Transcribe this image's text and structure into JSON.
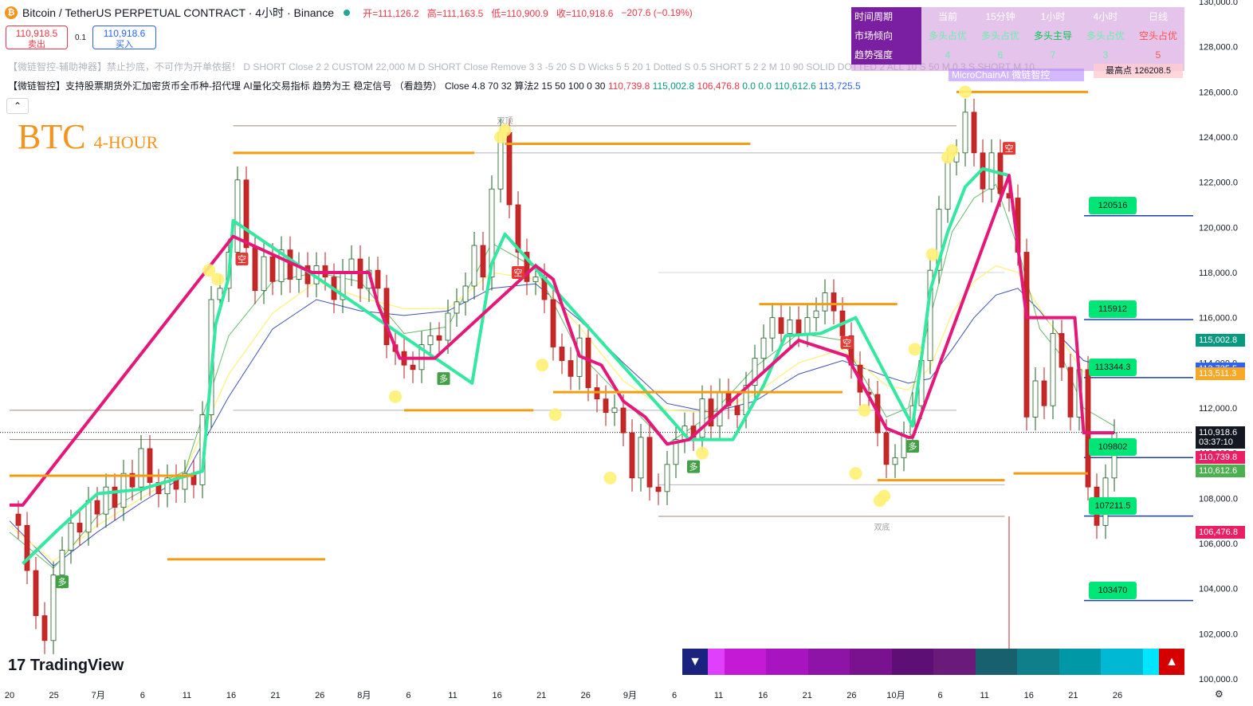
{
  "header": {
    "symbol": "Bitcoin / TetherUS PERPETUAL CONTRACT · 4小时 · Binance",
    "open": "开=111,126.2",
    "high": "高=111,163.5",
    "low": "低=110,900.9",
    "close": "收=110,918.6",
    "change": "−207.6 (−0.19%)"
  },
  "trade": {
    "sell_price": "110,918.5",
    "sell_label": "卖出",
    "spread": "0.1",
    "buy_price": "110,918.6",
    "buy_label": "买入"
  },
  "indicators": {
    "line1": "【微链智控-辅助神器】禁止抄底，不可作为开单依据！ D SHORT Close 2 2 CUSTOM 22,000 M D SHORT Close Remove 3 3 -5 20 S D Wicks 5 5 20 1 Dotted S 0.5 SHORT 5 2 2 M 10 90 SOLID DOTTED 2 ALL 10 S 50 M 0.3 S SHORT M 10",
    "line2": "【微链智控】支持股票期货外汇加密货币全币种-招代理 AI量化交易指标 趋势为王 稳定信号 （看趋势） Close 4.8 70 32 算法2 15 50 100 0 30",
    "v1": "110,739.8",
    "v2": "115,002.8",
    "v3": "106,476.8",
    "v4": "0.0",
    "v5": "0.0",
    "v6": "110,612.6",
    "v7": "113,725.5"
  },
  "collapse_icon": "chevron-up-icon",
  "title": {
    "main": "BTC",
    "sub": "4-HOUR"
  },
  "panel": {
    "headers": [
      "时间周期",
      "当前",
      "15分钟",
      "1小时",
      "4小时",
      "日线"
    ],
    "trend": [
      "市场倾向",
      "多头占优",
      "多头占优",
      "多头主导",
      "多头占优",
      "空头占优"
    ],
    "strength": [
      "趋势强度",
      "4",
      "6",
      "7",
      "3",
      "5"
    ],
    "microchain": "MicroChainAI 微链智控",
    "highest": "最高点 126208.5"
  },
  "logo": "TradingView",
  "chart_data": {
    "type": "candlestick",
    "symbol": "BTCUSDT.P",
    "timeframe": "4H",
    "ylim": [
      100000,
      130000
    ],
    "y_ticks": [
      "100,000.0",
      "102,000.0",
      "104,000.0",
      "106,000.0",
      "108,000.0",
      "110,000.0",
      "112,000.0",
      "114,000.0",
      "116,000.0",
      "118,000.0",
      "120,000.0",
      "122,000.0",
      "124,000.0",
      "126,000.0",
      "128,000.0",
      "130,000.0"
    ],
    "x_ticks": [
      "20",
      "25",
      "7月",
      "6",
      "11",
      "16",
      "21",
      "26",
      "8月",
      "6",
      "11",
      "16",
      "21",
      "26",
      "9月",
      "6",
      "11",
      "16",
      "21",
      "26",
      "10月",
      "6",
      "11",
      "16",
      "21",
      "26"
    ],
    "close_series": [
      [
        0,
        107300
      ],
      [
        0.4,
        106800
      ],
      [
        0.8,
        104800
      ],
      [
        1.2,
        102800
      ],
      [
        1.6,
        101700
      ],
      [
        2,
        104600
      ],
      [
        2.4,
        105700
      ],
      [
        2.8,
        106900
      ],
      [
        3.2,
        106500
      ],
      [
        3.6,
        107900
      ],
      [
        4,
        107300
      ],
      [
        4.4,
        108500
      ],
      [
        4.8,
        107600
      ],
      [
        5.2,
        109100
      ],
      [
        5.6,
        108500
      ],
      [
        6,
        110200
      ],
      [
        6.4,
        108700
      ],
      [
        6.8,
        108200
      ],
      [
        7.2,
        108900
      ],
      [
        7.6,
        108400
      ],
      [
        8,
        109100
      ],
      [
        8.4,
        108600
      ],
      [
        8.8,
        111700
      ],
      [
        9.2,
        116800
      ],
      [
        9.6,
        117300
      ],
      [
        10,
        118900
      ],
      [
        10.4,
        122100
      ],
      [
        10.8,
        119100
      ],
      [
        11.2,
        117200
      ],
      [
        11.6,
        118700
      ],
      [
        12,
        117600
      ],
      [
        12.4,
        119000
      ],
      [
        12.8,
        117700
      ],
      [
        13.2,
        118300
      ],
      [
        13.6,
        117500
      ],
      [
        14,
        118300
      ],
      [
        14.4,
        117800
      ],
      [
        14.8,
        116800
      ],
      [
        15.2,
        118000
      ],
      [
        15.6,
        118600
      ],
      [
        16,
        117300
      ],
      [
        16.4,
        118100
      ],
      [
        16.8,
        117300
      ],
      [
        17.2,
        114800
      ],
      [
        17.6,
        114500
      ],
      [
        18,
        113900
      ],
      [
        18.4,
        113700
      ],
      [
        18.8,
        114800
      ],
      [
        19.2,
        115200
      ],
      [
        19.6,
        115000
      ],
      [
        20,
        116200
      ],
      [
        20.4,
        116700
      ],
      [
        20.8,
        117400
      ],
      [
        21.2,
        119200
      ],
      [
        21.6,
        117800
      ],
      [
        22,
        121700
      ],
      [
        22.4,
        124200
      ],
      [
        22.8,
        121000
      ],
      [
        23.2,
        118900
      ],
      [
        23.6,
        117600
      ],
      [
        24,
        117800
      ],
      [
        24.4,
        116800
      ],
      [
        24.8,
        114700
      ],
      [
        25.2,
        114100
      ],
      [
        25.6,
        113400
      ],
      [
        26,
        115100
      ],
      [
        26.4,
        112900
      ],
      [
        26.8,
        112400
      ],
      [
        27.2,
        111800
      ],
      [
        27.6,
        112000
      ],
      [
        28,
        110900
      ],
      [
        28.4,
        108900
      ],
      [
        28.8,
        110700
      ],
      [
        29.2,
        108500
      ],
      [
        29.6,
        108300
      ],
      [
        30,
        109500
      ],
      [
        30.4,
        110600
      ],
      [
        30.8,
        111200
      ],
      [
        31.2,
        110700
      ],
      [
        31.6,
        112400
      ],
      [
        32,
        111200
      ],
      [
        32.4,
        112700
      ],
      [
        32.8,
        112100
      ],
      [
        33.2,
        111700
      ],
      [
        33.6,
        113000
      ],
      [
        34,
        114200
      ],
      [
        34.4,
        115100
      ],
      [
        34.8,
        116000
      ],
      [
        35.2,
        115300
      ],
      [
        35.6,
        115900
      ],
      [
        36,
        115300
      ],
      [
        36.4,
        116000
      ],
      [
        36.8,
        116300
      ],
      [
        37.2,
        117100
      ],
      [
        37.6,
        116300
      ],
      [
        38,
        115200
      ],
      [
        38.4,
        113900
      ],
      [
        38.8,
        112700
      ],
      [
        39.2,
        112600
      ],
      [
        39.6,
        110900
      ],
      [
        40,
        109500
      ],
      [
        40.4,
        109800
      ],
      [
        40.8,
        110800
      ],
      [
        41.2,
        112100
      ],
      [
        41.6,
        114100
      ],
      [
        42,
        118100
      ],
      [
        42.4,
        120800
      ],
      [
        42.8,
        122900
      ],
      [
        43.2,
        123300
      ],
      [
        43.6,
        125100
      ],
      [
        44,
        123300
      ],
      [
        44.4,
        121700
      ],
      [
        44.8,
        123300
      ],
      [
        45.2,
        121500
      ],
      [
        45.6,
        121300
      ],
      [
        46,
        118900
      ],
      [
        46.4,
        111600
      ],
      [
        46.8,
        113200
      ],
      [
        47.2,
        112100
      ],
      [
        47.6,
        115300
      ],
      [
        48,
        113800
      ],
      [
        48.4,
        111600
      ],
      [
        48.8,
        113700
      ],
      [
        49.2,
        108500
      ],
      [
        49.6,
        106800
      ],
      [
        50,
        108900
      ],
      [
        50.4,
        110900
      ]
    ],
    "supertrend_bull": [
      [
        0.6,
        105100
      ],
      [
        2.2,
        106600
      ],
      [
        4,
        108200
      ],
      [
        6,
        108400
      ],
      [
        8.8,
        109200
      ],
      [
        9.4,
        115700
      ],
      [
        10,
        117800
      ],
      [
        10.2,
        120300
      ],
      [
        21.1,
        113100
      ],
      [
        22,
        118400
      ],
      [
        22.6,
        119700
      ],
      [
        31,
        110600
      ],
      [
        33,
        110600
      ],
      [
        34.4,
        113000
      ],
      [
        35.4,
        115200
      ],
      [
        37,
        115300
      ],
      [
        38.6,
        116000
      ],
      [
        41.2,
        111200
      ],
      [
        42,
        117200
      ],
      [
        42.8,
        119800
      ],
      [
        43.6,
        121800
      ],
      [
        44.4,
        122600
      ],
      [
        45.6,
        122300
      ]
    ],
    "supertrend_bear": [
      [
        0,
        107700
      ],
      [
        0.6,
        107700
      ],
      [
        10.2,
        119600
      ],
      [
        13.8,
        118000
      ],
      [
        16.4,
        118000
      ],
      [
        16.8,
        116600
      ],
      [
        17.8,
        114200
      ],
      [
        19.4,
        114200
      ],
      [
        24,
        118300
      ],
      [
        24.8,
        117700
      ],
      [
        26,
        114300
      ],
      [
        27,
        113900
      ],
      [
        28,
        112300
      ],
      [
        29,
        111600
      ],
      [
        30,
        110400
      ],
      [
        31,
        110600
      ],
      [
        36,
        115000
      ],
      [
        38.2,
        114300
      ],
      [
        40,
        111100
      ],
      [
        41,
        110700
      ],
      [
        41.2,
        110700
      ],
      [
        45.6,
        122300
      ],
      [
        46.4,
        116000
      ],
      [
        48.6,
        116000
      ],
      [
        49,
        110900
      ],
      [
        50.4,
        110900
      ]
    ],
    "ma_slow": [
      [
        0,
        107000
      ],
      [
        2,
        105000
      ],
      [
        4,
        106500
      ],
      [
        6,
        107800
      ],
      [
        8,
        109000
      ],
      [
        10,
        112500
      ],
      [
        12,
        115500
      ],
      [
        14,
        116800
      ],
      [
        16,
        116300
      ],
      [
        18,
        116100
      ],
      [
        20,
        116300
      ],
      [
        22,
        117300
      ],
      [
        24,
        117500
      ],
      [
        26,
        115900
      ],
      [
        28,
        114000
      ],
      [
        30,
        112200
      ],
      [
        32,
        111800
      ],
      [
        34,
        112300
      ],
      [
        36,
        113500
      ],
      [
        38,
        114100
      ],
      [
        40,
        113400
      ],
      [
        41,
        113100
      ],
      [
        42,
        113300
      ],
      [
        43,
        114600
      ],
      [
        44,
        116000
      ],
      [
        45,
        117000
      ],
      [
        46,
        117300
      ],
      [
        47,
        116300
      ],
      [
        48,
        115100
      ],
      [
        49,
        114100
      ],
      [
        50.4,
        113700
      ]
    ],
    "ma_mid": [
      [
        0,
        106800
      ],
      [
        2,
        105200
      ],
      [
        4,
        106800
      ],
      [
        6,
        108000
      ],
      [
        8,
        109200
      ],
      [
        10,
        113500
      ],
      [
        12,
        116200
      ],
      [
        14,
        117600
      ],
      [
        16,
        116900
      ],
      [
        18,
        116400
      ],
      [
        20,
        116400
      ],
      [
        22,
        118000
      ],
      [
        24,
        117700
      ],
      [
        26,
        115600
      ],
      [
        28,
        113200
      ],
      [
        30,
        111900
      ],
      [
        32,
        111800
      ],
      [
        34,
        112600
      ],
      [
        36,
        114000
      ],
      [
        38,
        114600
      ],
      [
        40,
        113000
      ],
      [
        41,
        112800
      ],
      [
        42,
        113800
      ],
      [
        43,
        116200
      ],
      [
        44,
        117600
      ],
      [
        45,
        118300
      ],
      [
        46,
        118000
      ],
      [
        47,
        116400
      ],
      [
        48,
        115000
      ],
      [
        49,
        113600
      ],
      [
        50.4,
        113500
      ]
    ],
    "ma_fast": [
      [
        0,
        106500
      ],
      [
        2,
        104900
      ],
      [
        4,
        107200
      ],
      [
        6,
        108300
      ],
      [
        8,
        109200
      ],
      [
        10,
        115200
      ],
      [
        12,
        117600
      ],
      [
        14,
        118000
      ],
      [
        16,
        117600
      ],
      [
        18,
        115300
      ],
      [
        20,
        115600
      ],
      [
        22,
        119300
      ],
      [
        24,
        118200
      ],
      [
        26,
        114400
      ],
      [
        28,
        112400
      ],
      [
        30,
        110400
      ],
      [
        32,
        111700
      ],
      [
        34,
        113800
      ],
      [
        36,
        115300
      ],
      [
        38,
        115000
      ],
      [
        40,
        111600
      ],
      [
        41,
        112000
      ],
      [
        42,
        116000
      ],
      [
        43,
        119800
      ],
      [
        44,
        121300
      ],
      [
        45,
        121900
      ],
      [
        46,
        119100
      ],
      [
        47,
        115500
      ],
      [
        48,
        114300
      ],
      [
        49,
        112000
      ],
      [
        50.4,
        111200
      ]
    ],
    "support_resistance": [
      {
        "x1": 10.2,
        "x2": 21.2,
        "y": 123300
      },
      {
        "x1": 22.6,
        "x2": 33.8,
        "y": 123700
      },
      {
        "x1": 7.2,
        "x2": 14.4,
        "y": 105300
      },
      {
        "x1": 0,
        "x2": 8.4,
        "y": 109000
      },
      {
        "x1": 18,
        "x2": 23.9,
        "y": 111900
      },
      {
        "x1": 24.8,
        "x2": 38,
        "y": 112700
      },
      {
        "x1": 34.2,
        "x2": 40.5,
        "y": 116600
      },
      {
        "x1": 39.6,
        "x2": 45.4,
        "y": 108800
      },
      {
        "x1": 43.2,
        "x2": 49.2,
        "y": 126000
      },
      {
        "x1": 45.8,
        "x2": 49.2,
        "y": 109100
      }
    ],
    "thin_lines": [
      {
        "x1": 10.2,
        "x2": 43.2,
        "y": 124500,
        "color": "#a1887f"
      },
      {
        "x1": 10.2,
        "x2": 43.2,
        "y": 123300,
        "color": "#b2b5be"
      },
      {
        "x1": 10.2,
        "x2": 43.2,
        "y": 111900,
        "color": "#b2b5be"
      },
      {
        "x1": 29.6,
        "x2": 45.4,
        "y": 107200,
        "color": "#a1887f"
      },
      {
        "x1": 29.6,
        "x2": 45.4,
        "y": 108600,
        "color": "#b2b5be"
      },
      {
        "x1": 29.6,
        "x2": 45.4,
        "y": 118000,
        "color": "#d1d4dc"
      },
      {
        "x1": 0,
        "x2": 8.4,
        "y": 111900,
        "color": "#a1887f"
      },
      {
        "x1": 0,
        "x2": 8.4,
        "y": 110600,
        "color": "#a1887f"
      }
    ],
    "level_lines": [
      120516,
      115912,
      113344.3,
      109802,
      107211.5,
      103470
    ],
    "level_labels": [
      "120516",
      "115912",
      "113344.3",
      "109802",
      "107211.5",
      "103470"
    ],
    "signals": [
      {
        "x": 2.4,
        "y": 104300,
        "label": "多",
        "type": "long"
      },
      {
        "x": 10.6,
        "y": 118600,
        "label": "空",
        "type": "short"
      },
      {
        "x": 19.8,
        "y": 113300,
        "label": "多",
        "type": "long"
      },
      {
        "x": 23.2,
        "y": 118000,
        "label": "空",
        "type": "short"
      },
      {
        "x": 31.2,
        "y": 109400,
        "label": "多",
        "type": "long"
      },
      {
        "x": 38.2,
        "y": 114900,
        "label": "空",
        "type": "short"
      },
      {
        "x": 41.2,
        "y": 110300,
        "label": "多",
        "type": "long"
      },
      {
        "x": 45.6,
        "y": 123500,
        "label": "空",
        "type": "short"
      }
    ],
    "dots": [
      [
        9.1,
        118100
      ],
      [
        9.5,
        117700
      ],
      [
        17.6,
        112500
      ],
      [
        22.4,
        124000
      ],
      [
        22.6,
        124300
      ],
      [
        24.3,
        113900
      ],
      [
        24.9,
        111700
      ],
      [
        27.4,
        108900
      ],
      [
        31.6,
        110000
      ],
      [
        39,
        111900
      ],
      [
        38.6,
        109100
      ],
      [
        39.7,
        107900
      ],
      [
        39.9,
        108100
      ],
      [
        41.3,
        114600
      ],
      [
        42.1,
        118800
      ],
      [
        42.8,
        123100
      ],
      [
        43,
        123400
      ],
      [
        43.6,
        126000
      ]
    ],
    "annotations": [
      {
        "x": 22.6,
        "y": 124600,
        "text": "双顶"
      },
      {
        "x": 39.8,
        "y": 106600,
        "text": "双底"
      }
    ],
    "current_price": 110918.6,
    "price_tags": [
      {
        "value": "115,002.8",
        "color": "#089981",
        "y": 115002.8
      },
      {
        "value": "113,725.5",
        "color": "#2962ff",
        "y": 113725.5
      },
      {
        "value": "113,511.3",
        "color": "#f9a825",
        "y": 113511.3
      },
      {
        "value": "110,918.6",
        "color": "#131722",
        "y": 110918.6
      },
      {
        "value": "03:37:10",
        "color": "#131722",
        "y": 110500
      },
      {
        "value": "110,739.8",
        "color": "#e91e63",
        "y": 109800
      },
      {
        "value": "110,612.6",
        "color": "#4caf50",
        "y": 109200
      },
      {
        "value": "106,476.8",
        "color": "#e91e63",
        "y": 106476.8
      }
    ]
  }
}
